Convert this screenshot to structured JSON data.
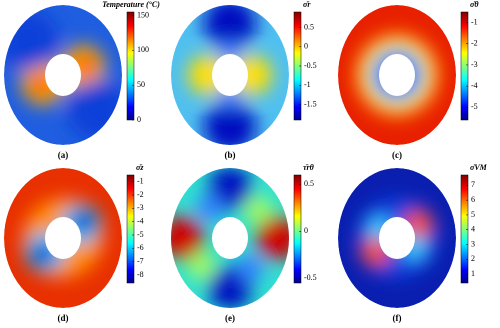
{
  "chart_data": [
    {
      "type": "contour",
      "colormap": "jet",
      "label": "(a)",
      "colorbar_title": "Temperature (°C)",
      "clim": [
        0,
        155
      ],
      "ticks": [
        0,
        50,
        100,
        150
      ]
    },
    {
      "type": "contour",
      "colormap": "jet",
      "label": "(b)",
      "colorbar_title": "σ̄r",
      "clim": [
        -1.9,
        0.9
      ],
      "ticks": [
        0.5,
        0,
        -0.5,
        -1,
        -1.5
      ]
    },
    {
      "type": "contour",
      "colormap": "jet",
      "label": "(c)",
      "colorbar_title": "σ̄θ",
      "clim": [
        -5.6,
        -0.5
      ],
      "ticks": [
        -1,
        -2,
        -3,
        -4,
        -5
      ]
    },
    {
      "type": "contour",
      "colormap": "jet",
      "label": "(d)",
      "colorbar_title": "σ̄z",
      "clim": [
        -8.6,
        -0.5
      ],
      "ticks": [
        -1,
        -2,
        -3,
        -4,
        -5,
        -6,
        -7,
        -8
      ]
    },
    {
      "type": "contour",
      "colormap": "jet",
      "label": "(e)",
      "colorbar_title": "τ̄rθ",
      "clim": [
        -0.55,
        0.6
      ],
      "ticks": [
        0.5,
        0,
        -0.5
      ]
    },
    {
      "type": "contour",
      "colormap": "jet",
      "label": "(f)",
      "colorbar_title": "σ̄VM",
      "clim": [
        0.4,
        7.7
      ],
      "ticks": [
        1,
        2,
        3,
        4,
        5,
        6,
        7
      ]
    }
  ]
}
